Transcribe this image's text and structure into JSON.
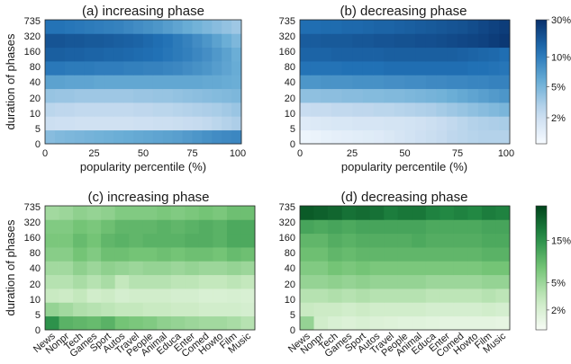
{
  "chart_data": [
    {
      "type": "heatmap",
      "title": "(a) increasing phase",
      "xlabel": "popularity percentile (%)",
      "ylabel": "duration of phases",
      "x_ticks": [
        "0",
        "25",
        "50",
        "75",
        "100"
      ],
      "y_ticks": [
        "0",
        "5",
        "10",
        "20",
        "40",
        "80",
        "160",
        "320",
        "735"
      ],
      "x_bins": 20,
      "colormap": "blue",
      "grid": [
        [
          0.42,
          0.44,
          0.45,
          0.46,
          0.47,
          0.48,
          0.49,
          0.5,
          0.51,
          0.52,
          0.53,
          0.54,
          0.55,
          0.56,
          0.58,
          0.6,
          0.62,
          0.64,
          0.65,
          0.66
        ],
        [
          0.22,
          0.21,
          0.21,
          0.2,
          0.2,
          0.2,
          0.2,
          0.2,
          0.2,
          0.21,
          0.21,
          0.22,
          0.22,
          0.23,
          0.24,
          0.25,
          0.26,
          0.28,
          0.3,
          0.32
        ],
        [
          0.28,
          0.27,
          0.27,
          0.26,
          0.26,
          0.26,
          0.26,
          0.26,
          0.26,
          0.27,
          0.27,
          0.28,
          0.28,
          0.29,
          0.3,
          0.31,
          0.32,
          0.33,
          0.35,
          0.37
        ],
        [
          0.38,
          0.37,
          0.37,
          0.36,
          0.36,
          0.36,
          0.36,
          0.36,
          0.36,
          0.37,
          0.37,
          0.38,
          0.38,
          0.39,
          0.4,
          0.41,
          0.42,
          0.43,
          0.44,
          0.45
        ],
        [
          0.55,
          0.55,
          0.54,
          0.54,
          0.54,
          0.53,
          0.53,
          0.53,
          0.53,
          0.53,
          0.53,
          0.53,
          0.53,
          0.53,
          0.53,
          0.53,
          0.52,
          0.52,
          0.51,
          0.5
        ],
        [
          0.72,
          0.72,
          0.71,
          0.71,
          0.71,
          0.7,
          0.7,
          0.7,
          0.69,
          0.69,
          0.68,
          0.68,
          0.67,
          0.66,
          0.64,
          0.62,
          0.6,
          0.57,
          0.54,
          0.51
        ],
        [
          0.82,
          0.82,
          0.81,
          0.81,
          0.8,
          0.8,
          0.79,
          0.79,
          0.78,
          0.77,
          0.76,
          0.75,
          0.73,
          0.71,
          0.69,
          0.66,
          0.63,
          0.59,
          0.55,
          0.5
        ],
        [
          0.86,
          0.86,
          0.85,
          0.85,
          0.84,
          0.84,
          0.83,
          0.82,
          0.81,
          0.8,
          0.78,
          0.76,
          0.74,
          0.71,
          0.68,
          0.64,
          0.6,
          0.55,
          0.5,
          0.45
        ],
        [
          0.74,
          0.74,
          0.73,
          0.72,
          0.71,
          0.7,
          0.69,
          0.68,
          0.66,
          0.64,
          0.62,
          0.6,
          0.57,
          0.54,
          0.51,
          0.48,
          0.45,
          0.42,
          0.39,
          0.36
        ]
      ]
    },
    {
      "type": "heatmap",
      "title": "(b) decreasing phase",
      "xlabel": "popularity percentile (%)",
      "ylabel": "",
      "x_ticks": [
        "0",
        "25",
        "50",
        "75",
        "100"
      ],
      "y_ticks": [
        "0",
        "5",
        "10",
        "20",
        "40",
        "80",
        "160",
        "320",
        "735"
      ],
      "x_bins": 20,
      "colormap": "blue",
      "grid": [
        [
          0.05,
          0.06,
          0.08,
          0.09,
          0.1,
          0.11,
          0.12,
          0.13,
          0.15,
          0.17,
          0.19,
          0.21,
          0.23,
          0.25,
          0.27,
          0.28,
          0.29,
          0.3,
          0.3,
          0.3
        ],
        [
          0.13,
          0.14,
          0.15,
          0.16,
          0.16,
          0.17,
          0.17,
          0.17,
          0.18,
          0.18,
          0.19,
          0.2,
          0.22,
          0.24,
          0.26,
          0.28,
          0.3,
          0.31,
          0.32,
          0.33
        ],
        [
          0.24,
          0.25,
          0.25,
          0.26,
          0.26,
          0.27,
          0.27,
          0.28,
          0.28,
          0.29,
          0.3,
          0.31,
          0.32,
          0.34,
          0.36,
          0.38,
          0.4,
          0.42,
          0.44,
          0.46
        ],
        [
          0.4,
          0.4,
          0.41,
          0.41,
          0.42,
          0.42,
          0.43,
          0.43,
          0.44,
          0.44,
          0.45,
          0.46,
          0.47,
          0.48,
          0.5,
          0.52,
          0.54,
          0.56,
          0.58,
          0.6
        ],
        [
          0.6,
          0.6,
          0.61,
          0.61,
          0.61,
          0.62,
          0.62,
          0.62,
          0.63,
          0.63,
          0.64,
          0.64,
          0.65,
          0.65,
          0.66,
          0.66,
          0.67,
          0.67,
          0.68,
          0.68
        ],
        [
          0.74,
          0.74,
          0.74,
          0.74,
          0.75,
          0.75,
          0.75,
          0.75,
          0.76,
          0.76,
          0.76,
          0.76,
          0.76,
          0.76,
          0.76,
          0.76,
          0.75,
          0.75,
          0.74,
          0.73
        ],
        [
          0.8,
          0.8,
          0.8,
          0.81,
          0.81,
          0.81,
          0.81,
          0.81,
          0.82,
          0.82,
          0.82,
          0.82,
          0.82,
          0.82,
          0.82,
          0.81,
          0.8,
          0.79,
          0.78,
          0.76
        ],
        [
          0.83,
          0.83,
          0.84,
          0.84,
          0.84,
          0.85,
          0.85,
          0.86,
          0.86,
          0.87,
          0.87,
          0.88,
          0.88,
          0.89,
          0.9,
          0.91,
          0.92,
          0.93,
          0.95,
          0.97
        ],
        [
          0.76,
          0.76,
          0.77,
          0.77,
          0.78,
          0.78,
          0.79,
          0.8,
          0.8,
          0.81,
          0.82,
          0.83,
          0.84,
          0.85,
          0.86,
          0.87,
          0.89,
          0.91,
          0.93,
          0.95
        ]
      ]
    },
    {
      "type": "heatmap",
      "title": "(c) increasing phase",
      "xlabel": "",
      "ylabel": "duration of phases",
      "x_categories": [
        "News",
        "Nonpr",
        "Tech",
        "Games",
        "Sport",
        "Autos",
        "Travel",
        "People",
        "Animal",
        "Educa",
        "Enter",
        "Comed",
        "Howto",
        "Film",
        "Music"
      ],
      "y_ticks": [
        "0",
        "5",
        "10",
        "20",
        "40",
        "80",
        "160",
        "320",
        "735"
      ],
      "colormap": "green",
      "grid": [
        [
          0.72,
          0.58,
          0.56,
          0.54,
          0.58,
          0.5,
          0.48,
          0.46,
          0.42,
          0.4,
          0.38,
          0.36,
          0.36,
          0.34,
          0.3
        ],
        [
          0.4,
          0.36,
          0.32,
          0.3,
          0.28,
          0.26,
          0.26,
          0.24,
          0.24,
          0.22,
          0.22,
          0.2,
          0.2,
          0.2,
          0.18
        ],
        [
          0.24,
          0.22,
          0.26,
          0.2,
          0.22,
          0.18,
          0.2,
          0.2,
          0.2,
          0.18,
          0.18,
          0.16,
          0.16,
          0.17,
          0.16
        ],
        [
          0.3,
          0.3,
          0.34,
          0.3,
          0.34,
          0.26,
          0.3,
          0.3,
          0.3,
          0.28,
          0.28,
          0.26,
          0.26,
          0.28,
          0.26
        ],
        [
          0.36,
          0.36,
          0.42,
          0.38,
          0.42,
          0.4,
          0.38,
          0.4,
          0.4,
          0.38,
          0.4,
          0.38,
          0.38,
          0.4,
          0.38
        ],
        [
          0.44,
          0.44,
          0.5,
          0.46,
          0.52,
          0.52,
          0.5,
          0.5,
          0.52,
          0.5,
          0.52,
          0.52,
          0.5,
          0.54,
          0.52
        ],
        [
          0.48,
          0.48,
          0.54,
          0.5,
          0.56,
          0.58,
          0.56,
          0.58,
          0.58,
          0.58,
          0.6,
          0.6,
          0.58,
          0.62,
          0.62
        ],
        [
          0.46,
          0.46,
          0.5,
          0.48,
          0.52,
          0.56,
          0.56,
          0.56,
          0.58,
          0.56,
          0.58,
          0.6,
          0.58,
          0.62,
          0.62
        ],
        [
          0.36,
          0.38,
          0.42,
          0.4,
          0.42,
          0.46,
          0.46,
          0.46,
          0.48,
          0.46,
          0.48,
          0.5,
          0.48,
          0.52,
          0.52
        ]
      ]
    },
    {
      "type": "heatmap",
      "title": "(d) decreasing phase",
      "xlabel": "",
      "ylabel": "",
      "x_categories": [
        "News",
        "Nonpr",
        "Tech",
        "Games",
        "Sport",
        "Autos",
        "Travel",
        "People",
        "Animal",
        "Educa",
        "Enter",
        "Comed",
        "Howto",
        "Film",
        "Music"
      ],
      "y_ticks": [
        "0",
        "5",
        "10",
        "20",
        "40",
        "80",
        "160",
        "320",
        "735"
      ],
      "colormap": "green",
      "grid": [
        [
          0.4,
          0.2,
          0.16,
          0.14,
          0.16,
          0.14,
          0.13,
          0.12,
          0.12,
          0.11,
          0.1,
          0.1,
          0.1,
          0.1,
          0.09
        ],
        [
          0.24,
          0.22,
          0.22,
          0.2,
          0.22,
          0.2,
          0.2,
          0.2,
          0.2,
          0.18,
          0.18,
          0.18,
          0.18,
          0.2,
          0.18
        ],
        [
          0.3,
          0.3,
          0.32,
          0.3,
          0.32,
          0.3,
          0.3,
          0.3,
          0.3,
          0.28,
          0.28,
          0.28,
          0.28,
          0.3,
          0.28
        ],
        [
          0.4,
          0.4,
          0.42,
          0.4,
          0.42,
          0.4,
          0.4,
          0.4,
          0.4,
          0.38,
          0.38,
          0.38,
          0.38,
          0.4,
          0.4
        ],
        [
          0.46,
          0.46,
          0.5,
          0.48,
          0.5,
          0.48,
          0.48,
          0.48,
          0.48,
          0.48,
          0.48,
          0.48,
          0.48,
          0.5,
          0.5
        ],
        [
          0.52,
          0.52,
          0.56,
          0.54,
          0.56,
          0.56,
          0.56,
          0.56,
          0.56,
          0.56,
          0.56,
          0.56,
          0.56,
          0.58,
          0.58
        ],
        [
          0.56,
          0.56,
          0.6,
          0.58,
          0.6,
          0.6,
          0.6,
          0.6,
          0.62,
          0.6,
          0.6,
          0.6,
          0.6,
          0.62,
          0.62
        ],
        [
          0.64,
          0.62,
          0.64,
          0.62,
          0.64,
          0.64,
          0.64,
          0.64,
          0.64,
          0.62,
          0.62,
          0.62,
          0.62,
          0.64,
          0.64
        ],
        [
          0.92,
          0.9,
          0.88,
          0.84,
          0.86,
          0.84,
          0.8,
          0.82,
          0.82,
          0.78,
          0.76,
          0.78,
          0.76,
          0.8,
          0.78
        ]
      ]
    }
  ],
  "colorbars": [
    {
      "colormap": "blue",
      "tick_labels": [
        "30%",
        "10%",
        "5%",
        "2%"
      ],
      "tick_levels": [
        1.0,
        0.7,
        0.46,
        0.21
      ]
    },
    {
      "colormap": "green",
      "tick_labels": [
        "15%",
        "5%",
        "2%"
      ],
      "tick_levels": [
        0.72,
        0.38,
        0.16
      ]
    }
  ]
}
